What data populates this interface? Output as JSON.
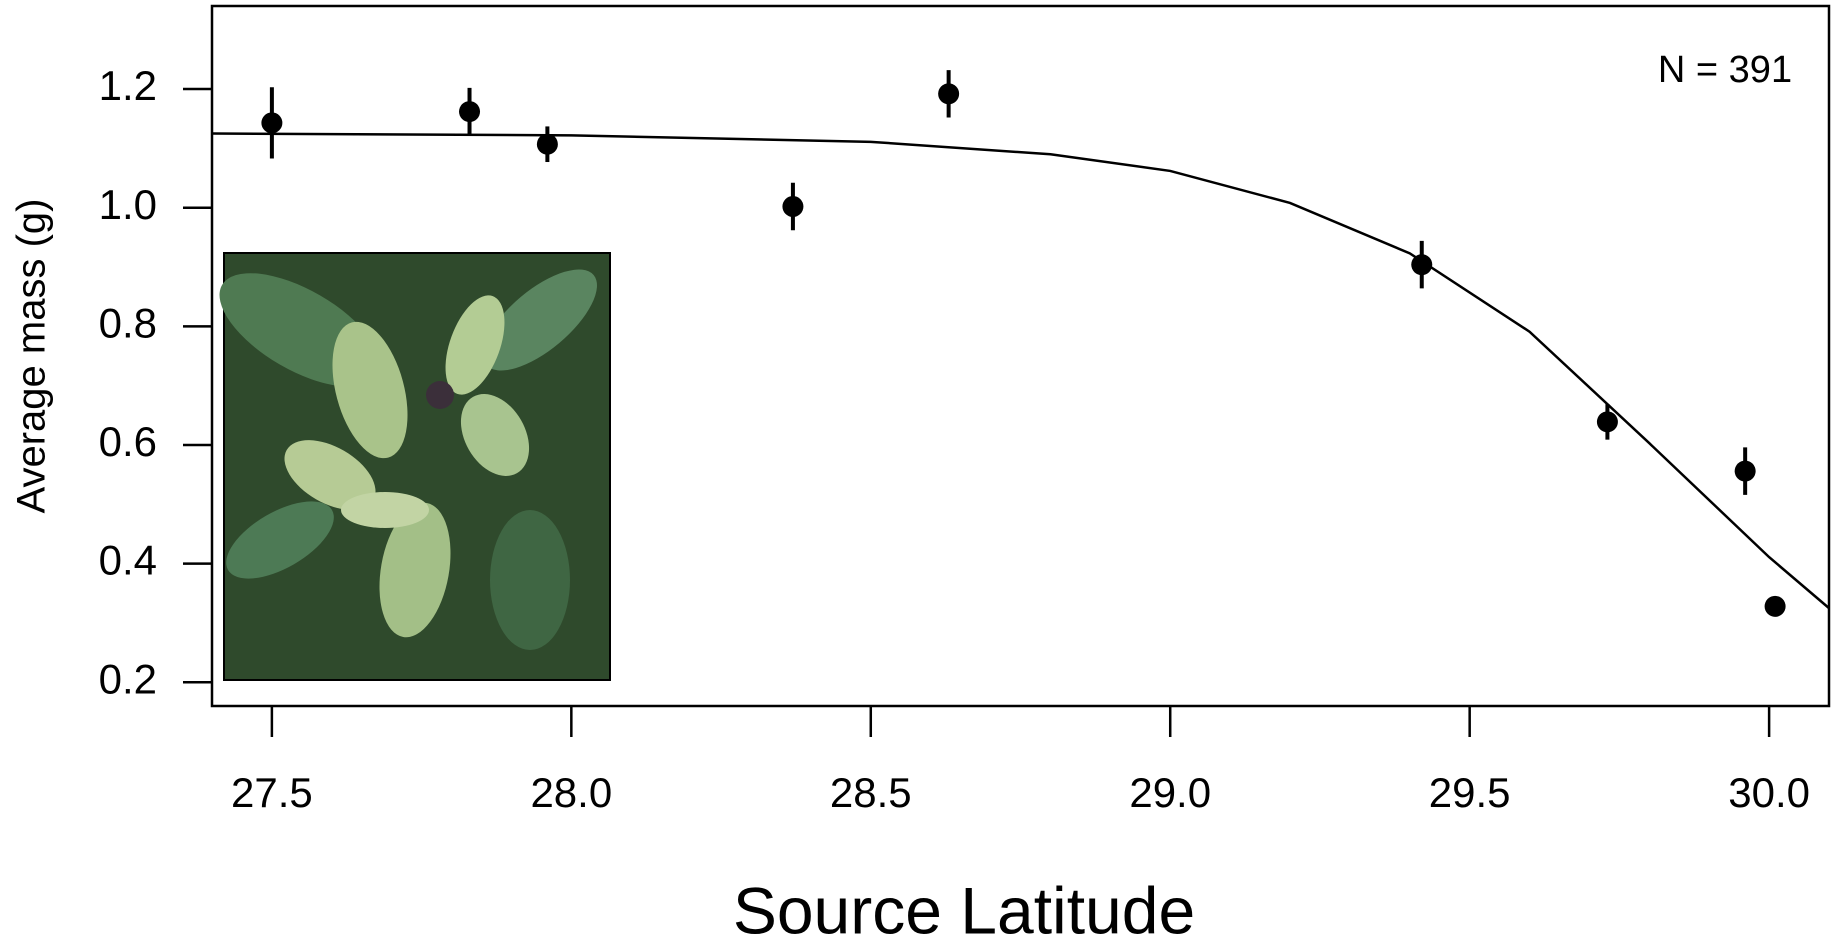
{
  "chart_data": {
    "type": "scatter",
    "xlabel": "Source Latitude",
    "ylabel": "Average mass (g)",
    "annotation": "N = 391",
    "xlim": [
      27.4,
      30.1
    ],
    "ylim": [
      0.16,
      1.34
    ],
    "xticks": [
      27.5,
      {
        "value": 28,
        "label": "28.0"
      },
      28.5,
      {
        "value": 29,
        "label": "29.0"
      },
      29.5,
      {
        "value": 30,
        "label": "30.0"
      }
    ],
    "yticks": [
      0.2,
      0.4,
      0.6,
      0.8,
      {
        "value": 1,
        "label": "1.0"
      },
      1.2
    ],
    "points": {
      "color": "#000000",
      "x": [
        27.5,
        27.83,
        27.96,
        28.37,
        28.63,
        29.42,
        29.73,
        29.96,
        30.01
      ],
      "values": [
        1.143,
        1.162,
        1.107,
        1.002,
        1.192,
        0.904,
        0.639,
        0.556,
        0.328
      ],
      "errors": [
        0.06,
        0.04,
        0.03,
        0.04,
        0.04,
        0.04,
        0.03,
        0.04,
        0.015
      ]
    },
    "fit": {
      "color": "#000000",
      "x": [
        27.4,
        28.0,
        28.5,
        28.8,
        29.0,
        29.2,
        29.4,
        29.6,
        29.8,
        30.0,
        30.1
      ],
      "values": [
        1.125,
        1.122,
        1.111,
        1.09,
        1.062,
        1.008,
        0.923,
        0.791,
        0.603,
        0.411,
        0.325
      ]
    }
  }
}
